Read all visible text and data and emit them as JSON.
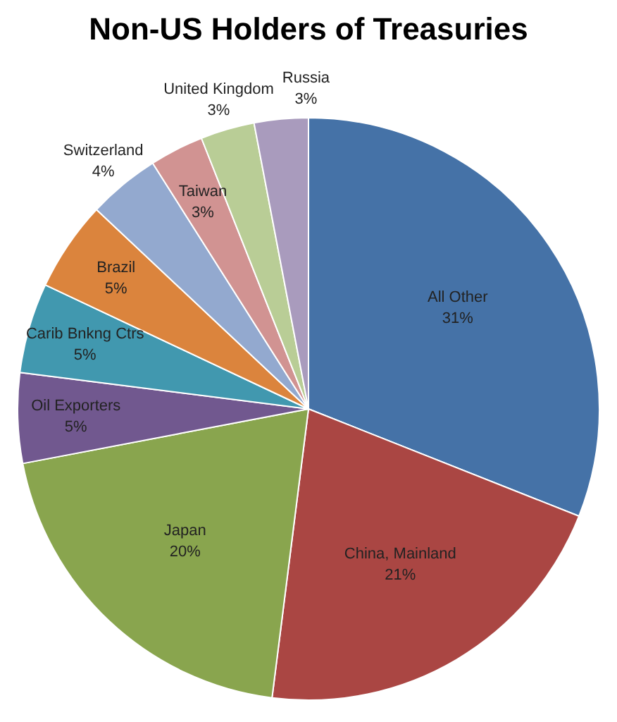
{
  "chart_data": {
    "type": "pie",
    "title": "Non-US Holders of Treasuries",
    "categories": [
      "All Other",
      "China, Mainland",
      "Japan",
      "Oil Exporters",
      "Carib Bnkng Ctrs",
      "Brazil",
      "Switzerland",
      "Taiwan",
      "United Kingdom",
      "Russia"
    ],
    "values": [
      31,
      21,
      20,
      5,
      5,
      5,
      4,
      3,
      3,
      3
    ],
    "value_labels": [
      "31%",
      "21%",
      "20%",
      "5%",
      "5%",
      "5%",
      "4%",
      "3%",
      "3%",
      "3%"
    ],
    "colors": [
      "#4572a7",
      "#aa4643",
      "#89a54e",
      "#71588f",
      "#4198af",
      "#db843d",
      "#93a9cf",
      "#d19392",
      "#b9cd96",
      "#a99bbd"
    ],
    "legend": false
  }
}
